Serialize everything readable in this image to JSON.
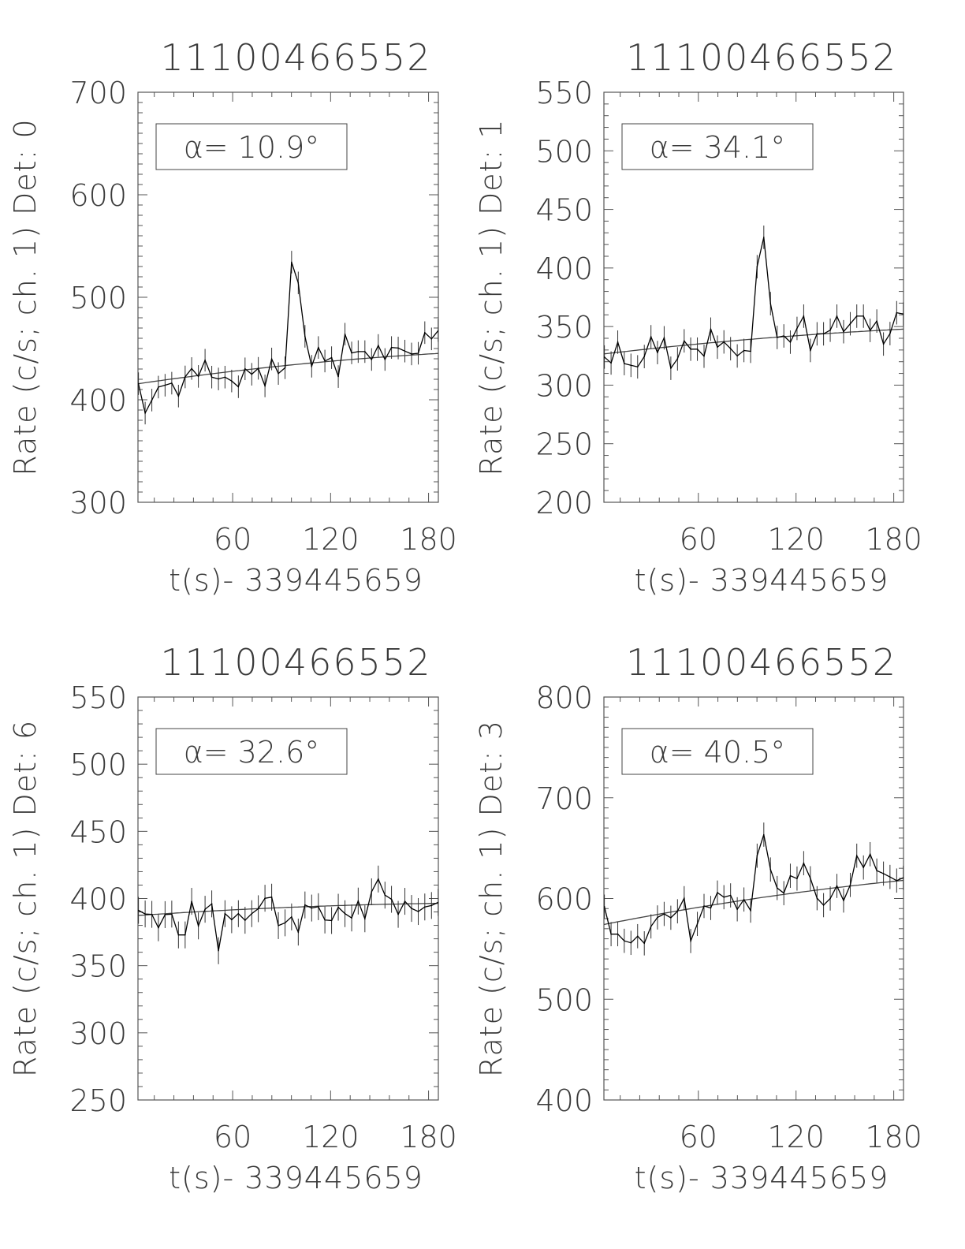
{
  "chart_data": [
    {
      "type": "line",
      "title": "11100466552",
      "ylabel": "Rate (c/s; ch. 1) Det: 0",
      "xlabel": "t(s)- 339445659",
      "annotation": "α= 10.9°",
      "xlim": [
        2,
        186
      ],
      "ylim": [
        300,
        700
      ],
      "xticks": [
        60,
        120,
        180
      ],
      "xtick_labels": [
        "60",
        "120",
        "180"
      ],
      "yticks": [
        300,
        400,
        500,
        600,
        700
      ],
      "ytick_labels": [
        "300",
        "400",
        "500",
        "600",
        "700"
      ],
      "x": [
        2.3,
        6.4,
        10.5,
        14.5,
        18.6,
        22.7,
        26.8,
        30.9,
        34.9,
        39.0,
        43.1,
        47.2,
        51.3,
        55.3,
        59.4,
        63.5,
        67.6,
        71.7,
        75.7,
        79.8,
        83.9,
        88.0,
        92.1,
        96.1,
        100.2,
        104.3,
        108.4,
        112.5,
        116.5,
        120.6,
        124.7,
        128.8,
        132.9,
        136.9,
        141.0,
        145.1,
        149.2,
        153.3,
        157.3,
        161.4,
        165.5,
        169.6,
        173.7,
        177.7,
        181.8,
        185.9
      ],
      "y": [
        415.7,
        387,
        399.7,
        412.4,
        414.2,
        416.2,
        403.6,
        422.3,
        430.5,
        422.8,
        438.6,
        422.1,
        420.3,
        422.1,
        418.3,
        412.7,
        430.2,
        424.9,
        430.7,
        413.5,
        439.8,
        425.6,
        431.2,
        534.3,
        514,
        461.9,
        432.7,
        451,
        437.8,
        441.1,
        422.6,
        464,
        445.7,
        447,
        447,
        439.3,
        453,
        439.3,
        451,
        450.5,
        447.5,
        444.7,
        445.4,
        465.5,
        459.4,
        467.5
      ],
      "yerr": 11,
      "fit": {
        "x": [
          2.3,
          96.1,
          185.9
        ],
        "y": [
          415.7,
          434,
          445.2
        ]
      }
    },
    {
      "type": "line",
      "title": "11100466552",
      "ylabel": "Rate (c/s; ch. 1) Det: 1",
      "xlabel": "t(s)- 339445659",
      "annotation": "α= 34.1°",
      "xlim": [
        2,
        186
      ],
      "ylim": [
        200,
        550
      ],
      "xticks": [
        60,
        120,
        180
      ],
      "xtick_labels": [
        "60",
        "120",
        "180"
      ],
      "yticks": [
        200,
        250,
        300,
        350,
        400,
        450,
        500,
        550
      ],
      "ytick_labels": [
        "200",
        "250",
        "300",
        "350",
        "400",
        "450",
        "500",
        "550"
      ],
      "x": [
        2.3,
        6.4,
        10.5,
        14.5,
        18.6,
        22.7,
        26.8,
        30.9,
        34.9,
        39.0,
        43.1,
        47.2,
        51.3,
        55.3,
        59.4,
        63.5,
        67.6,
        71.7,
        75.7,
        79.8,
        83.9,
        88.0,
        92.1,
        96.1,
        100.2,
        104.3,
        108.4,
        112.5,
        116.5,
        120.6,
        124.7,
        128.8,
        132.9,
        136.9,
        141.0,
        145.1,
        149.2,
        153.3,
        157.3,
        161.4,
        165.5,
        169.6,
        173.7,
        177.7,
        181.8,
        185.9
      ],
      "y": [
        324,
        318.9,
        336.7,
        318.4,
        316.9,
        315.6,
        324.4,
        341.3,
        327.8,
        340.4,
        314.4,
        322.4,
        337.8,
        330.7,
        330.7,
        324.7,
        347.8,
        332.4,
        336.9,
        331.1,
        324.9,
        329.6,
        328.9,
        401.1,
        426.2,
        369.6,
        340.7,
        342,
        336.7,
        348.4,
        358.9,
        329.6,
        343.8,
        343.8,
        346.9,
        358.9,
        345.6,
        352.4,
        358.9,
        358.9,
        346.7,
        354.7,
        335.1,
        344,
        361.8,
        360.7
      ],
      "yerr": 10,
      "fit": {
        "x": [
          2.3,
          96.1,
          185.9
        ],
        "y": [
          326.7,
          339.6,
          347.8
        ]
      }
    },
    {
      "type": "line",
      "title": "11100466552",
      "ylabel": "Rate (c/s; ch. 1) Det: 6",
      "xlabel": "t(s)- 339445659",
      "annotation": "α= 32.6°",
      "xlim": [
        2,
        186
      ],
      "ylim": [
        250,
        550
      ],
      "xticks": [
        60,
        120,
        180
      ],
      "xtick_labels": [
        "60",
        "120",
        "180"
      ],
      "yticks": [
        250,
        300,
        350,
        400,
        450,
        500,
        550
      ],
      "ytick_labels": [
        "250",
        "300",
        "350",
        "400",
        "450",
        "500",
        "550"
      ],
      "x": [
        2.3,
        6.4,
        10.5,
        14.5,
        18.6,
        22.7,
        26.8,
        30.9,
        34.9,
        39.0,
        43.1,
        47.2,
        51.3,
        55.3,
        59.4,
        63.5,
        67.6,
        71.7,
        75.7,
        79.8,
        83.9,
        88.0,
        92.1,
        96.1,
        100.2,
        104.3,
        108.4,
        112.5,
        116.5,
        120.6,
        124.7,
        128.8,
        132.9,
        136.9,
        141.0,
        145.1,
        149.2,
        153.3,
        157.3,
        161.4,
        165.5,
        169.6,
        173.7,
        177.7,
        181.8,
        185.9
      ],
      "y": [
        391.2,
        388.5,
        388.2,
        378.2,
        388,
        388.4,
        372.9,
        372.9,
        397.9,
        379.6,
        392,
        396,
        361.1,
        388.7,
        384.2,
        388.7,
        383.8,
        388.7,
        392.4,
        400.2,
        401,
        379.8,
        381.9,
        386.3,
        375,
        395.2,
        392.9,
        393.9,
        384,
        383.6,
        393.5,
        388.7,
        385.5,
        398.1,
        384.9,
        405,
        414.5,
        402.5,
        399.4,
        388.2,
        397.9,
        392.6,
        390.3,
        393.7,
        394.8,
        397.1
      ],
      "yerr": 10,
      "fit": {
        "x": [
          2.3,
          96.1,
          185.9
        ],
        "y": [
          387.4,
          393.5,
          396.4
        ]
      }
    },
    {
      "type": "line",
      "title": "11100466552",
      "ylabel": "Rate (c/s; ch. 1) Det: 3",
      "xlabel": "t(s)- 339445659",
      "annotation": "α= 40.5°",
      "xlim": [
        2,
        186
      ],
      "ylim": [
        400,
        800
      ],
      "xticks": [
        60,
        120,
        180
      ],
      "xtick_labels": [
        "60",
        "120",
        "180"
      ],
      "yticks": [
        400,
        500,
        600,
        700,
        800
      ],
      "ytick_labels": [
        "400",
        "500",
        "600",
        "700",
        "800"
      ],
      "x": [
        2.3,
        6.4,
        10.5,
        14.5,
        18.6,
        22.7,
        26.8,
        30.9,
        34.9,
        39.0,
        43.1,
        47.2,
        51.3,
        55.3,
        59.4,
        63.5,
        67.6,
        71.7,
        75.7,
        79.8,
        83.9,
        88.0,
        92.1,
        96.1,
        100.2,
        104.3,
        108.4,
        112.5,
        116.5,
        120.6,
        124.7,
        128.8,
        132.9,
        136.9,
        141.0,
        145.1,
        149.2,
        153.3,
        157.3,
        161.4,
        165.5,
        169.6,
        173.7,
        177.7,
        181.8,
        185.9
      ],
      "y": [
        591.9,
        564.6,
        564.6,
        558,
        556,
        562.6,
        555.5,
        572.3,
        581.2,
        584.7,
        580.9,
        587.3,
        600.3,
        557.8,
        574.8,
        592.6,
        590.6,
        605.9,
        601.3,
        603.1,
        589.3,
        599,
        588,
        642.5,
        663.4,
        628.8,
        610.4,
        605.3,
        622.6,
        619.8,
        635.1,
        620.1,
        600.3,
        593.4,
        600,
        612.5,
        598,
        613.5,
        642.5,
        630.8,
        644,
        627.7,
        624.7,
        621.4,
        617.8,
        620.6
      ],
      "yerr": 12,
      "fit": {
        "x": [
          2.3,
          96.1,
          185.9
        ],
        "y": [
          574.3,
          600.3,
          618
        ]
      }
    }
  ],
  "colors": {
    "line": "#000000",
    "text": "#3a3a3a",
    "axis": "#555555",
    "background": "#ffffff"
  }
}
